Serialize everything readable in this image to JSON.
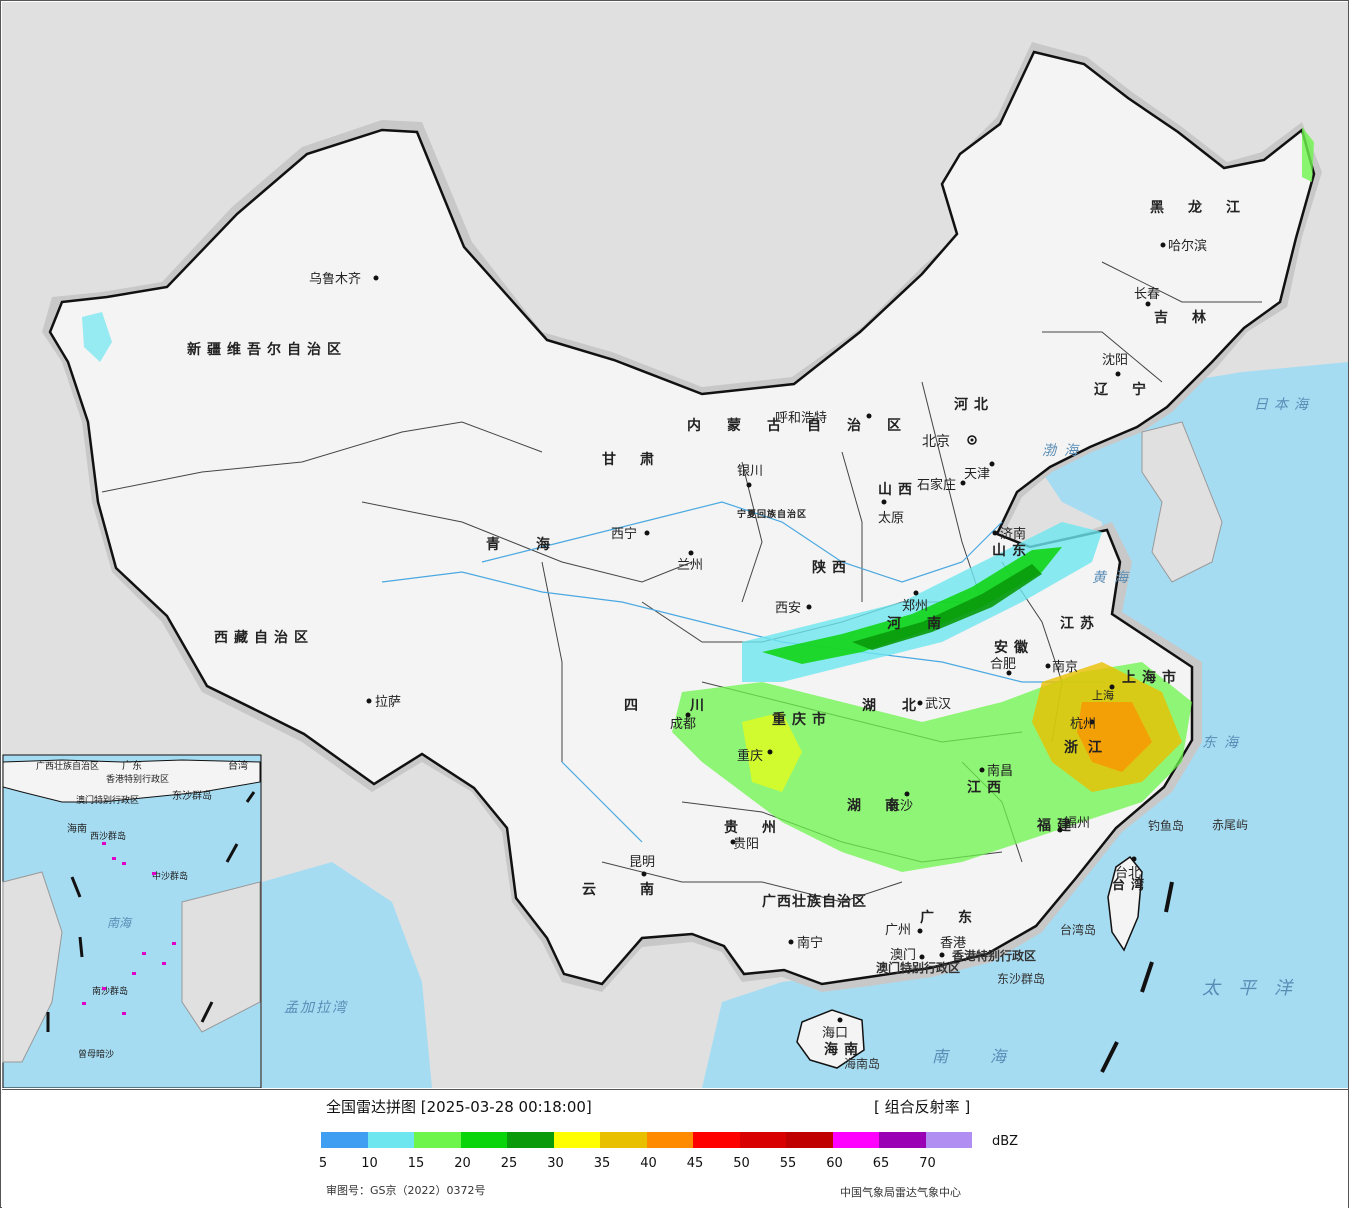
{
  "map": {
    "provinces": [
      {
        "label": "新疆维吾尔自治区"
      },
      {
        "label": "西藏自治区"
      },
      {
        "label": "青海"
      },
      {
        "label": "甘肃"
      },
      {
        "label": "内蒙古自治区"
      },
      {
        "label": "黑龙江"
      },
      {
        "label": "吉林"
      },
      {
        "label": "辽宁"
      },
      {
        "label": "河北"
      },
      {
        "label": "山西"
      },
      {
        "label": "山东"
      },
      {
        "label": "河南"
      },
      {
        "label": "陕西"
      },
      {
        "label": "四川"
      },
      {
        "label": "湖北"
      },
      {
        "label": "安徽"
      },
      {
        "label": "江苏"
      },
      {
        "label": "浙江"
      },
      {
        "label": "江西"
      },
      {
        "label": "湖南"
      },
      {
        "label": "贵州"
      },
      {
        "label": "云南"
      },
      {
        "label": "广西壮族自治区"
      },
      {
        "label": "广东"
      },
      {
        "label": "福建"
      },
      {
        "label": "海南"
      },
      {
        "label": "宁夏回族自治区"
      },
      {
        "label": "重庆市"
      },
      {
        "label": "上海市"
      },
      {
        "label": "台湾"
      }
    ],
    "cities": [
      "乌鲁木齐",
      "拉萨",
      "西宁",
      "兰州",
      "银川",
      "呼和浩特",
      "北京",
      "天津",
      "石家庄",
      "太原",
      "济南",
      "郑州",
      "西安",
      "成都",
      "重庆",
      "武汉",
      "合肥",
      "南京",
      "上海",
      "杭州",
      "南昌",
      "长沙",
      "贵阳",
      "昆明",
      "南宁",
      "广州",
      "澳门",
      "香港",
      "福州",
      "台北",
      "哈尔滨",
      "长春",
      "沈阳",
      "海口"
    ],
    "seas": [
      "日本海",
      "黄海",
      "渤海",
      "东海",
      "太平洋",
      "南海",
      "孟加拉湾"
    ],
    "islands": [
      "钓鱼岛",
      "赤尾屿",
      "台湾岛",
      "海南岛",
      "东沙群岛",
      "香港特别行政区",
      "澳门特别行政区"
    ],
    "inset_labels": [
      "南海",
      "广东",
      "台湾",
      "海南",
      "东沙群岛",
      "中沙群岛",
      "南沙群岛",
      "西沙群岛",
      "曾母暗沙",
      "香港特别行政区",
      "澳门特别行政区",
      "广西壮族自治区"
    ]
  },
  "legend": {
    "title": "全国雷达拼图 [2025-03-28 00:18:00]",
    "product": "[ 组合反射率 ]",
    "unit": "dBZ",
    "ticks": [
      "5",
      "10",
      "15",
      "20",
      "25",
      "30",
      "35",
      "40",
      "45",
      "50",
      "55",
      "60",
      "65",
      "70"
    ],
    "colors": [
      "#3f9ef2",
      "#6ee6ef",
      "#6ef54c",
      "#0ad40a",
      "#0a9a0a",
      "#ffff00",
      "#e8c000",
      "#ff8c00",
      "#ff0000",
      "#d80000",
      "#c00000",
      "#ff00ff",
      "#9a00b4",
      "#b18ff2"
    ],
    "approval": "审图号：GS京（2022）0372号",
    "producer": "中国气象局雷达气象中心"
  }
}
